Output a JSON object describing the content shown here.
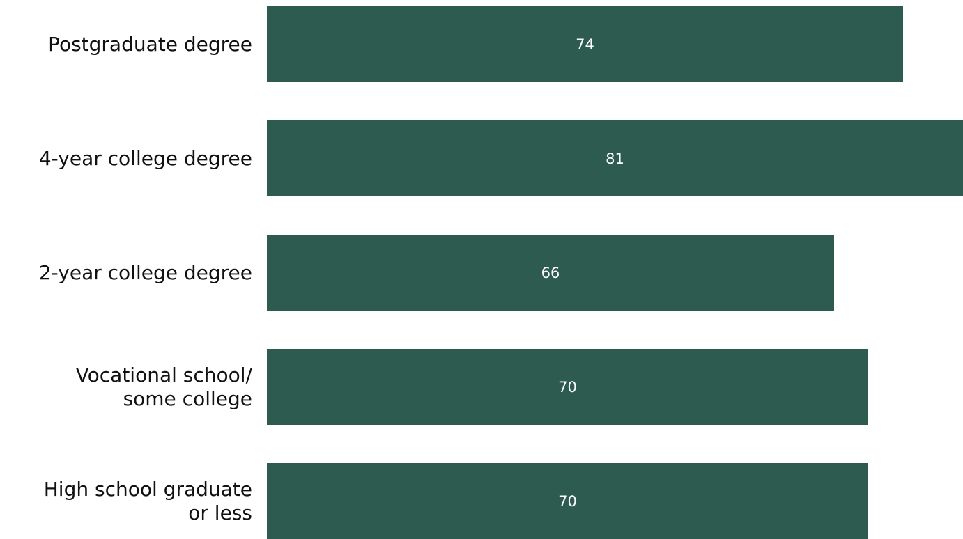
{
  "chart_data": {
    "type": "bar",
    "orientation": "horizontal",
    "categories": [
      "Postgraduate degree",
      "4-year college degree",
      "2-year college degree",
      "Vocational school/\nsome college",
      "High school graduate\nor less"
    ],
    "values": [
      74,
      81,
      66,
      70,
      70
    ],
    "value_labels": [
      "74",
      "81",
      "66",
      "70",
      "70"
    ],
    "xlim": [
      0,
      81
    ],
    "grid": false,
    "bar_color": "#2d5b4f",
    "label_color": "#ffffff"
  }
}
